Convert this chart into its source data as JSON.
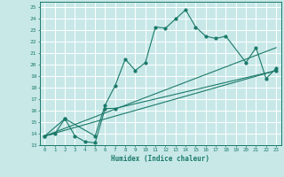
{
  "xlabel": "Humidex (Indice chaleur)",
  "ylabel": "",
  "bg_color": "#c8e8e8",
  "grid_color": "#ffffff",
  "line_color": "#1a7a6a",
  "xlim": [
    -0.5,
    23.5
  ],
  "ylim": [
    13,
    25.5
  ],
  "xticks": [
    0,
    1,
    2,
    3,
    4,
    5,
    6,
    7,
    8,
    9,
    10,
    11,
    12,
    13,
    14,
    15,
    16,
    17,
    18,
    19,
    20,
    21,
    22,
    23
  ],
  "yticks": [
    13,
    14,
    15,
    16,
    17,
    18,
    19,
    20,
    21,
    22,
    23,
    24,
    25
  ],
  "series": [
    {
      "x": [
        0,
        1,
        2,
        5,
        6,
        7,
        8,
        9,
        10,
        11,
        12,
        13,
        14,
        15,
        16,
        17,
        18,
        20,
        21,
        22,
        23
      ],
      "y": [
        13.8,
        14.0,
        15.3,
        13.8,
        16.5,
        18.2,
        20.5,
        19.5,
        20.2,
        23.3,
        23.2,
        24.0,
        24.8,
        23.3,
        22.5,
        22.3,
        22.5,
        20.2,
        21.5,
        18.8,
        19.7
      ],
      "has_markers": true
    },
    {
      "x": [
        0,
        2,
        3,
        4,
        5,
        6,
        7,
        23
      ],
      "y": [
        13.8,
        15.3,
        13.8,
        13.3,
        13.2,
        16.2,
        16.2,
        19.5
      ],
      "has_markers": true
    },
    {
      "x": [
        0,
        23
      ],
      "y": [
        13.8,
        19.5
      ],
      "has_markers": false
    },
    {
      "x": [
        0,
        23
      ],
      "y": [
        13.8,
        21.5
      ],
      "has_markers": false
    }
  ]
}
